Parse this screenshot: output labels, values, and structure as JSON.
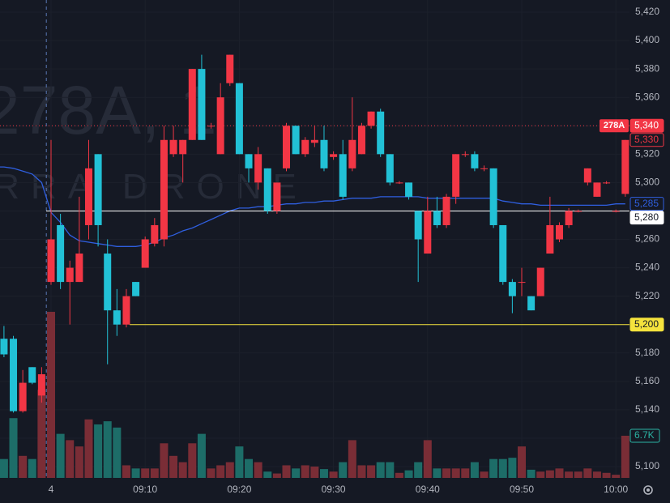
{
  "chart_data": {
    "type": "candlestick",
    "watermark": [
      "278A, 1",
      "TERRA DRONE"
    ],
    "up_color": "#f23645",
    "down_color": "#22c1d6",
    "volume_up_color": "#7a2d36",
    "volume_down_color": "#1d6d68",
    "ma_color": "#2f5fe0",
    "grid": true,
    "ylim": [
      5100,
      5420
    ],
    "yticks": [
      {
        "value": 5100,
        "label": "5,100"
      },
      {
        "value": 5120,
        "label": "5,120"
      },
      {
        "value": 5140,
        "label": "5,140"
      },
      {
        "value": 5160,
        "label": "5,160"
      },
      {
        "value": 5180,
        "label": "5,180"
      },
      {
        "value": 5200,
        "label": "5,200"
      },
      {
        "value": 5220,
        "label": "5,220"
      },
      {
        "value": 5240,
        "label": "5,240"
      },
      {
        "value": 5260,
        "label": "5,260"
      },
      {
        "value": 5280,
        "label": "5,280"
      },
      {
        "value": 5300,
        "label": "5,300"
      },
      {
        "value": 5320,
        "label": "5,320"
      },
      {
        "value": 5340,
        "label": "5,340"
      },
      {
        "value": 5360,
        "label": "5,360"
      },
      {
        "value": 5380,
        "label": "5,380"
      },
      {
        "value": 5400,
        "label": "5,400"
      },
      {
        "value": 5420,
        "label": "5,420"
      }
    ],
    "categories": [
      null,
      null,
      null,
      null,
      null,
      "4",
      null,
      null,
      null,
      null,
      null,
      null,
      null,
      null,
      null,
      "09:10",
      null,
      null,
      null,
      null,
      null,
      null,
      null,
      null,
      null,
      "09:20",
      null,
      null,
      null,
      null,
      null,
      null,
      null,
      null,
      null,
      "09:30",
      null,
      null,
      null,
      null,
      null,
      null,
      null,
      null,
      null,
      "09:40",
      null,
      null,
      null,
      null,
      null,
      null,
      null,
      null,
      null,
      "09:50",
      null,
      null,
      null,
      null,
      null,
      null,
      null,
      null,
      null,
      "10:00",
      null
    ],
    "open": [
      5190,
      5190,
      5139,
      5170,
      5150,
      5230,
      5270,
      5230,
      5230,
      5270,
      5320,
      5250,
      5210,
      5200,
      5230,
      5240,
      5257,
      5260,
      5320,
      5320,
      5330,
      5380,
      5340,
      5320,
      5370,
      5370,
      5320,
      5300,
      5310,
      5280,
      5310,
      5340,
      5320,
      5328,
      5330,
      5318,
      5320,
      5310,
      5320,
      5340,
      5350,
      5320,
      5300,
      5300,
      5280,
      5250,
      5280,
      5270,
      5290,
      5320,
      5320,
      5310,
      5310,
      5270,
      5230,
      5230,
      5220,
      5220,
      5250,
      5260,
      5270,
      5280,
      5300,
      5290,
      5300,
      5280,
      5292
    ],
    "high": [
      5199,
      5192,
      5168,
      5170,
      5170,
      5330,
      5278,
      5245,
      5290,
      5330,
      5320,
      5260,
      5225,
      5225,
      5230,
      5262,
      5275,
      5340,
      5340,
      5330,
      5380,
      5390,
      5342,
      5370,
      5390,
      5370,
      5320,
      5325,
      5310,
      5300,
      5342,
      5340,
      5332,
      5340,
      5340,
      5322,
      5330,
      5360,
      5342,
      5350,
      5352,
      5320,
      5301,
      5300,
      5280,
      5290,
      5290,
      5292,
      5320,
      5322,
      5322,
      5312,
      5310,
      5270,
      5232,
      5240,
      5220,
      5240,
      5290,
      5272,
      5282,
      5281,
      5310,
      5300,
      5301,
      5281,
      5330
    ],
    "low": [
      5177,
      5138,
      5138,
      5158,
      5145,
      5228,
      5225,
      5200,
      5230,
      5260,
      5255,
      5172,
      5192,
      5198,
      5220,
      5240,
      5255,
      5255,
      5318,
      5300,
      5330,
      5330,
      5338,
      5320,
      5368,
      5320,
      5300,
      5295,
      5278,
      5278,
      5308,
      5320,
      5318,
      5325,
      5308,
      5316,
      5288,
      5308,
      5320,
      5338,
      5318,
      5298,
      5299,
      5288,
      5230,
      5250,
      5268,
      5268,
      5285,
      5318,
      5308,
      5308,
      5268,
      5228,
      5208,
      5220,
      5210,
      5220,
      5250,
      5258,
      5268,
      5279,
      5298,
      5290,
      5299,
      5279,
      5290
    ],
    "close": [
      5179,
      5139,
      5159,
      5159,
      5165,
      5260,
      5230,
      5240,
      5250,
      5310,
      5270,
      5210,
      5200,
      5220,
      5220,
      5260,
      5270,
      5330,
      5330,
      5330,
      5380,
      5330,
      5340,
      5360,
      5390,
      5320,
      5310,
      5320,
      5280,
      5300,
      5340,
      5320,
      5330,
      5330,
      5310,
      5320,
      5290,
      5330,
      5340,
      5350,
      5320,
      5300,
      5300,
      5290,
      5260,
      5280,
      5270,
      5290,
      5320,
      5320,
      5310,
      5310,
      5270,
      5230,
      5220,
      5230,
      5210,
      5240,
      5270,
      5270,
      5280,
      5280,
      5310,
      5300,
      5300,
      5280,
      5330
    ],
    "ma_values": [
      5311,
      5310,
      5308,
      5306,
      5300,
      5279,
      5272,
      5263,
      5259,
      5258,
      5257,
      5256,
      5255,
      5255,
      5255,
      5256,
      5258,
      5261,
      5263,
      5266,
      5268,
      5271,
      5274,
      5277,
      5280,
      5282,
      5282,
      5283,
      5283,
      5284,
      5285,
      5285,
      5286,
      5286,
      5287,
      5287,
      5288,
      5289,
      5289,
      5289,
      5290,
      5290,
      5290,
      5290,
      5290,
      5289,
      5289,
      5289,
      5289,
      5289,
      5289,
      5289,
      5289,
      5287,
      5286,
      5285,
      5285,
      5284,
      5284,
      5284,
      5284,
      5284,
      5284,
      5284,
      5284,
      5285,
      5285
    ],
    "volume": [
      3000,
      9500,
      3500,
      3000,
      14000,
      26400,
      7000,
      6000,
      5000,
      9300,
      8500,
      9000,
      8000,
      2000,
      1500,
      1500,
      1500,
      5500,
      3500,
      2500,
      5500,
      7000,
      1500,
      2000,
      2500,
      5000,
      3000,
      2500,
      1000,
      700,
      2000,
      1500,
      2000,
      1800,
      1400,
      1000,
      2500,
      6000,
      2000,
      2000,
      2500,
      2500,
      800,
      1200,
      2500,
      6000,
      1500,
      1500,
      1500,
      1500,
      2500,
      1000,
      3000,
      3000,
      3200,
      5000,
      1300,
      1000,
      1200,
      1500,
      1000,
      1000,
      1500,
      1000,
      800,
      500,
      6700
    ],
    "volume_ylim": [
      0,
      30000
    ],
    "volume_marker": {
      "value": 6700,
      "label": "6.7K",
      "color": "#2bb3a3"
    },
    "price_labels": [
      {
        "value": 5340,
        "label": "5,340",
        "tag": "278A",
        "color": "#f23645",
        "style": "filled",
        "line": "dotted"
      },
      {
        "value": 5330,
        "label": "5,330",
        "color": "#f23645",
        "style": "outline"
      },
      {
        "value": 5285,
        "label": "5,285",
        "color": "#2f5fe0",
        "style": "outline"
      },
      {
        "value": 5280,
        "label": "5,280",
        "color": "#ffffff",
        "style": "filled",
        "line": "solid"
      },
      {
        "value": 5200,
        "label": "5,200",
        "color": "#f5e33d",
        "style": "filled",
        "line": "solid"
      }
    ]
  }
}
